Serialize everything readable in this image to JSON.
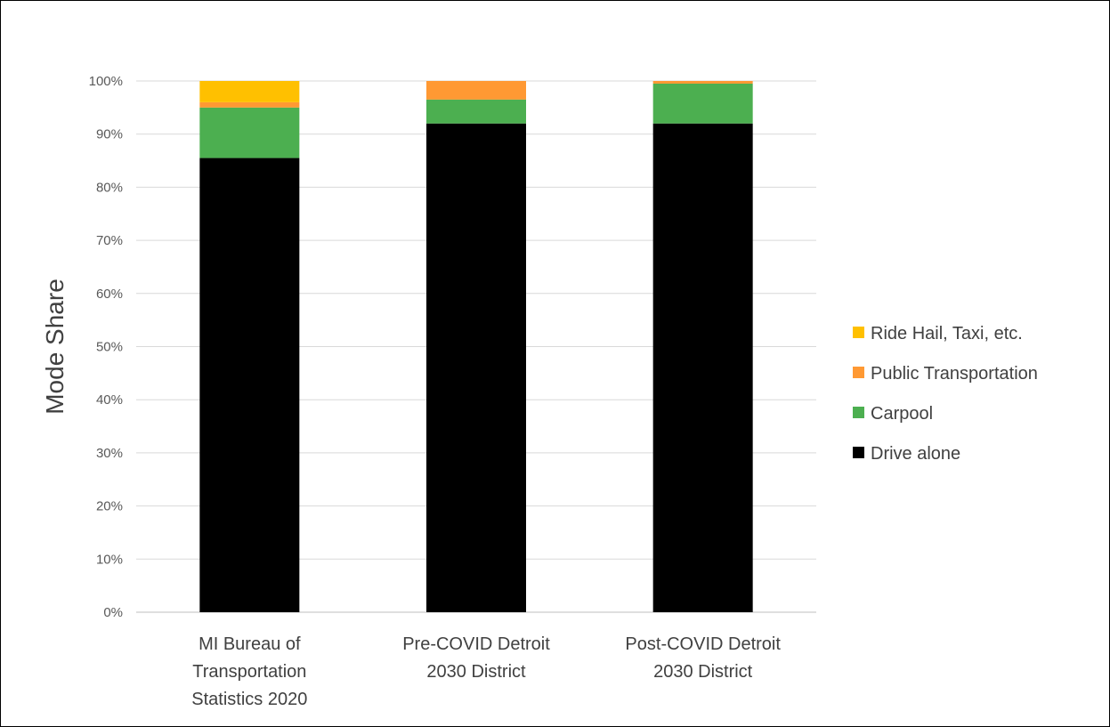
{
  "chart_data": {
    "type": "bar",
    "stacked": true,
    "categories": [
      [
        "MI Bureau of",
        "Transportation",
        "Statistics 2020"
      ],
      [
        "Pre-COVID Detroit",
        "2030 District"
      ],
      [
        "Post-COVID Detroit",
        "2030 District"
      ]
    ],
    "series": [
      {
        "name": "Drive alone",
        "color": "#000000",
        "values": [
          85.5,
          92.0,
          92.0
        ]
      },
      {
        "name": "Carpool",
        "color": "#4CAF50",
        "values": [
          9.5,
          4.5,
          7.5
        ]
      },
      {
        "name": "Public Transportation",
        "color": "#FF9933",
        "values": [
          1.0,
          3.5,
          0.5
        ]
      },
      {
        "name": "Ride Hail, Taxi, etc.",
        "color": "#FFC000",
        "values": [
          4.0,
          0.0,
          0.0
        ]
      }
    ],
    "ylabel": "Mode Share",
    "ylim": [
      0,
      100
    ],
    "yticks": [
      "0%",
      "10%",
      "20%",
      "30%",
      "40%",
      "50%",
      "60%",
      "70%",
      "80%",
      "90%",
      "100%"
    ],
    "grid": true,
    "legend_position": "right"
  }
}
